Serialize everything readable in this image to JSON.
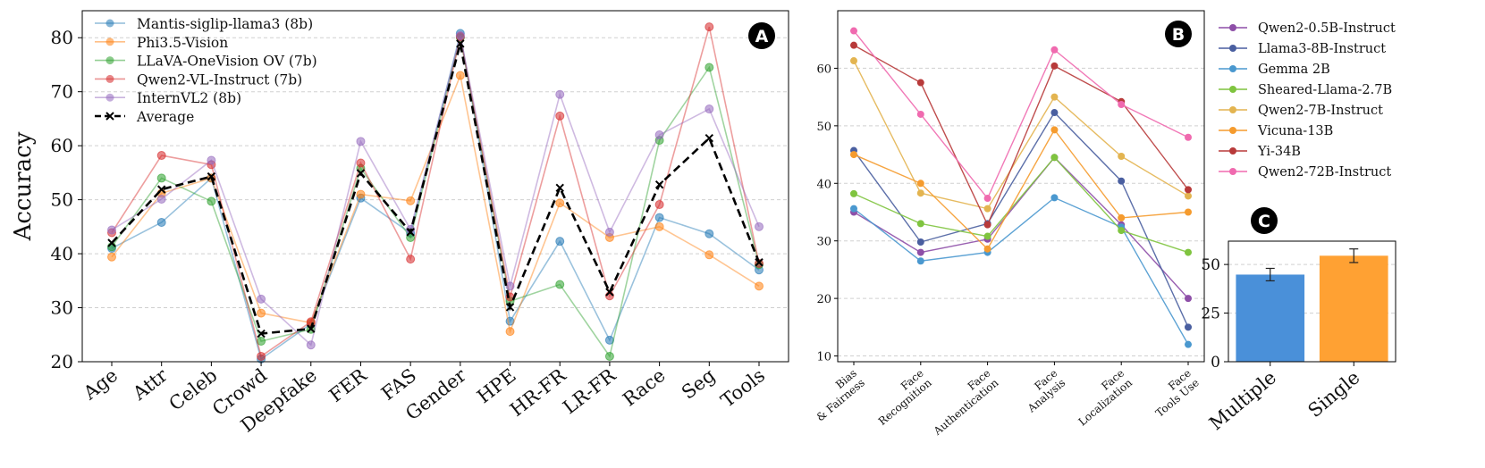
{
  "chart_data": [
    {
      "id": "A",
      "type": "line",
      "badge": "A",
      "ylabel": "Accuracy",
      "ylim": [
        20,
        85
      ],
      "yticks": [
        20,
        30,
        40,
        50,
        60,
        70,
        80
      ],
      "grid": true,
      "legend_position": "top-left",
      "categories": [
        "Age",
        "Attr",
        "Celeb",
        "Crowd",
        "Deepfake",
        "FER",
        "FAS",
        "Gender",
        "HPE",
        "HR-FR",
        "LR-FR",
        "Race",
        "Seg",
        "Tools"
      ],
      "series": [
        {
          "name": "Mantis-siglip-llama3 (8b)",
          "color": "#1f77b4",
          "values": [
            41.0,
            45.8,
            54.0,
            20.5,
            27.0,
            50.3,
            43.8,
            80.8,
            27.5,
            42.3,
            24.0,
            46.7,
            43.7,
            37.0
          ]
        },
        {
          "name": "Phi3.5-Vision",
          "color": "#ff7f0e",
          "values": [
            39.4,
            51.2,
            54.0,
            29.0,
            27.2,
            51.0,
            49.8,
            73.0,
            25.6,
            49.4,
            43.0,
            45.0,
            39.8,
            34.0
          ]
        },
        {
          "name": "LLaVA-OneVision OV (7b)",
          "color": "#2ca02c",
          "values": [
            41.3,
            54.0,
            49.7,
            23.8,
            26.0,
            55.8,
            43.0,
            80.0,
            31.2,
            34.3,
            21.0,
            61.0,
            74.5,
            38.0
          ]
        },
        {
          "name": "Qwen2-VL-Instruct (7b)",
          "color": "#d62728",
          "values": [
            43.9,
            58.2,
            56.5,
            21.0,
            27.4,
            56.8,
            39.0,
            80.2,
            32.0,
            65.5,
            32.2,
            49.1,
            82.0,
            38.2
          ]
        },
        {
          "name": "InternVL2 (8b)",
          "color": "#9467bd",
          "values": [
            44.4,
            50.1,
            57.3,
            31.6,
            23.1,
            60.8,
            44.5,
            80.4,
            34.0,
            69.5,
            44.0,
            62.0,
            66.8,
            45.0
          ]
        },
        {
          "name": "Average",
          "color": "#000000",
          "values": [
            42.0,
            51.9,
            54.3,
            25.2,
            26.1,
            54.9,
            44.0,
            78.9,
            30.1,
            52.2,
            32.9,
            52.8,
            61.4,
            38.4
          ]
        }
      ]
    },
    {
      "id": "B",
      "type": "line",
      "badge": "B",
      "ylim": [
        9,
        70
      ],
      "yticks": [
        10,
        20,
        30,
        40,
        50,
        60
      ],
      "grid": true,
      "legend_position": "outside-right",
      "categories": [
        [
          "Bias",
          "& Fairness"
        ],
        [
          "Face",
          "Recognition"
        ],
        [
          "Face",
          "Authentication"
        ],
        [
          "Face",
          "Analysis"
        ],
        [
          "Face",
          "Localization"
        ],
        [
          "Face",
          "Tools Use"
        ]
      ],
      "series": [
        {
          "name": "Qwen2-0.5B-Instruct",
          "color": "#8e4fa8",
          "values": [
            35.0,
            28.0,
            30.3,
            44.5,
            32.8,
            20.0
          ]
        },
        {
          "name": "Llama3-8B-Instruct",
          "color": "#4a5fa0",
          "values": [
            45.7,
            29.8,
            33.0,
            52.3,
            40.4,
            15.0
          ]
        },
        {
          "name": "Gemma 2B",
          "color": "#4a98cf",
          "values": [
            35.6,
            26.5,
            28.0,
            37.5,
            32.4,
            12.0
          ]
        },
        {
          "name": "Sheared-Llama-2.7B",
          "color": "#7fc43f",
          "values": [
            38.2,
            33.0,
            30.8,
            44.5,
            31.8,
            28.0
          ]
        },
        {
          "name": "Qwen2-7B-Instruct",
          "color": "#e3b450",
          "values": [
            61.3,
            38.3,
            35.6,
            55.0,
            44.7,
            37.8
          ]
        },
        {
          "name": "Vicuna-13B",
          "color": "#f59b2e",
          "values": [
            45.0,
            40.0,
            28.6,
            49.3,
            34.0,
            35.0
          ]
        },
        {
          "name": "Yi-34B",
          "color": "#b83a3a",
          "values": [
            64.0,
            57.5,
            32.8,
            60.4,
            54.2,
            38.9
          ]
        },
        {
          "name": "Qwen2-72B-Instruct",
          "color": "#f06aaf",
          "values": [
            66.5,
            52.0,
            37.4,
            63.2,
            53.7,
            48.0
          ]
        }
      ]
    },
    {
      "id": "C",
      "type": "bar",
      "badge": "C",
      "ylim": [
        0,
        62
      ],
      "yticks": [
        0,
        25,
        50
      ],
      "grid": true,
      "categories": [
        "Multiple",
        "Single"
      ],
      "values": [
        44.8,
        54.5
      ],
      "errors": [
        3.2,
        3.5
      ],
      "colors": [
        "#4a90d9",
        "#ffa133"
      ]
    }
  ]
}
